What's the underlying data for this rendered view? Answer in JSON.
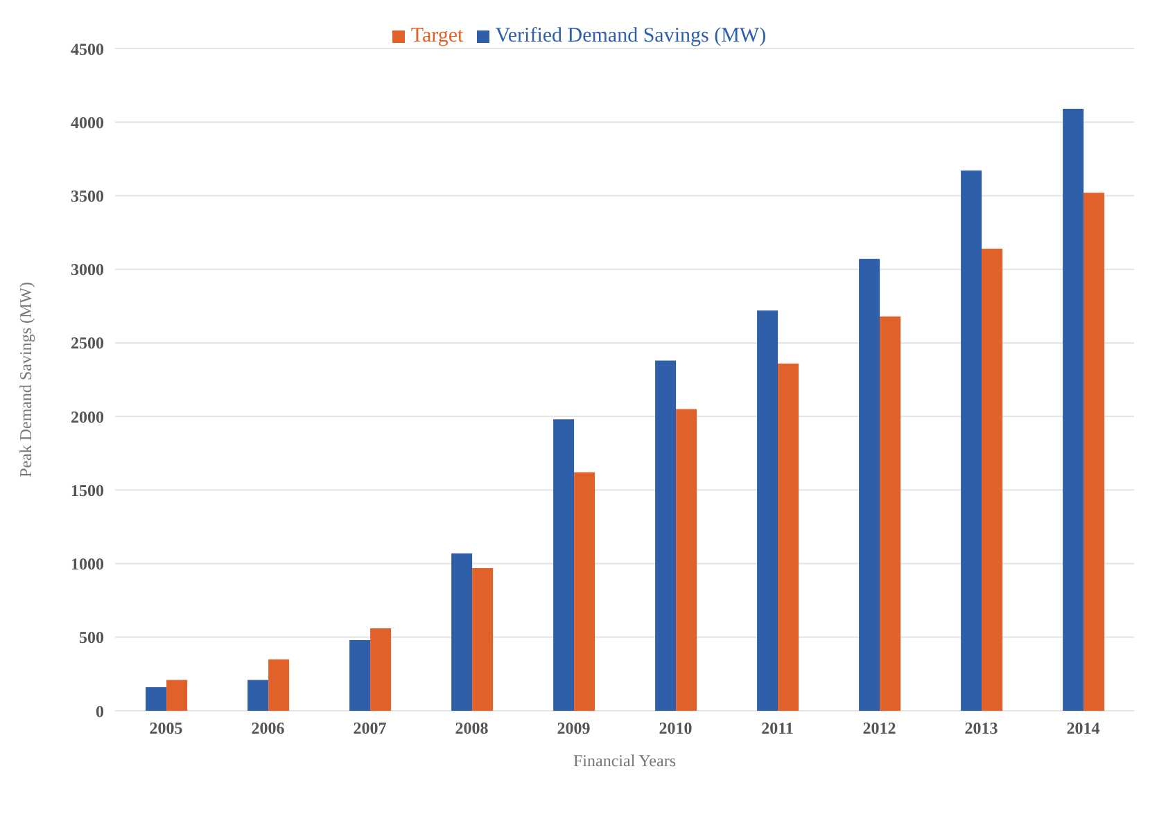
{
  "chart_data": {
    "type": "bar",
    "xlabel": "Financial Years",
    "ylabel": "Peak Demand Savings (MW)",
    "categories": [
      "2005",
      "2006",
      "2007",
      "2008",
      "2009",
      "2010",
      "2011",
      "2012",
      "2013",
      "2014"
    ],
    "series": [
      {
        "name": "Verified Demand Savings (MW)",
        "color": "#2e5fa8",
        "values": [
          160,
          210,
          480,
          1070,
          1980,
          2380,
          2720,
          3070,
          3670,
          4090
        ]
      },
      {
        "name": "Target",
        "color": "#e0622a",
        "values": [
          210,
          350,
          560,
          970,
          1620,
          2050,
          2360,
          2680,
          3140,
          3520
        ]
      }
    ],
    "ylim": [
      0,
      4500
    ],
    "yticks": [
      0,
      500,
      1000,
      1500,
      2000,
      2500,
      3000,
      3500,
      4000,
      4500
    ],
    "grid": "y",
    "legend": "top"
  }
}
